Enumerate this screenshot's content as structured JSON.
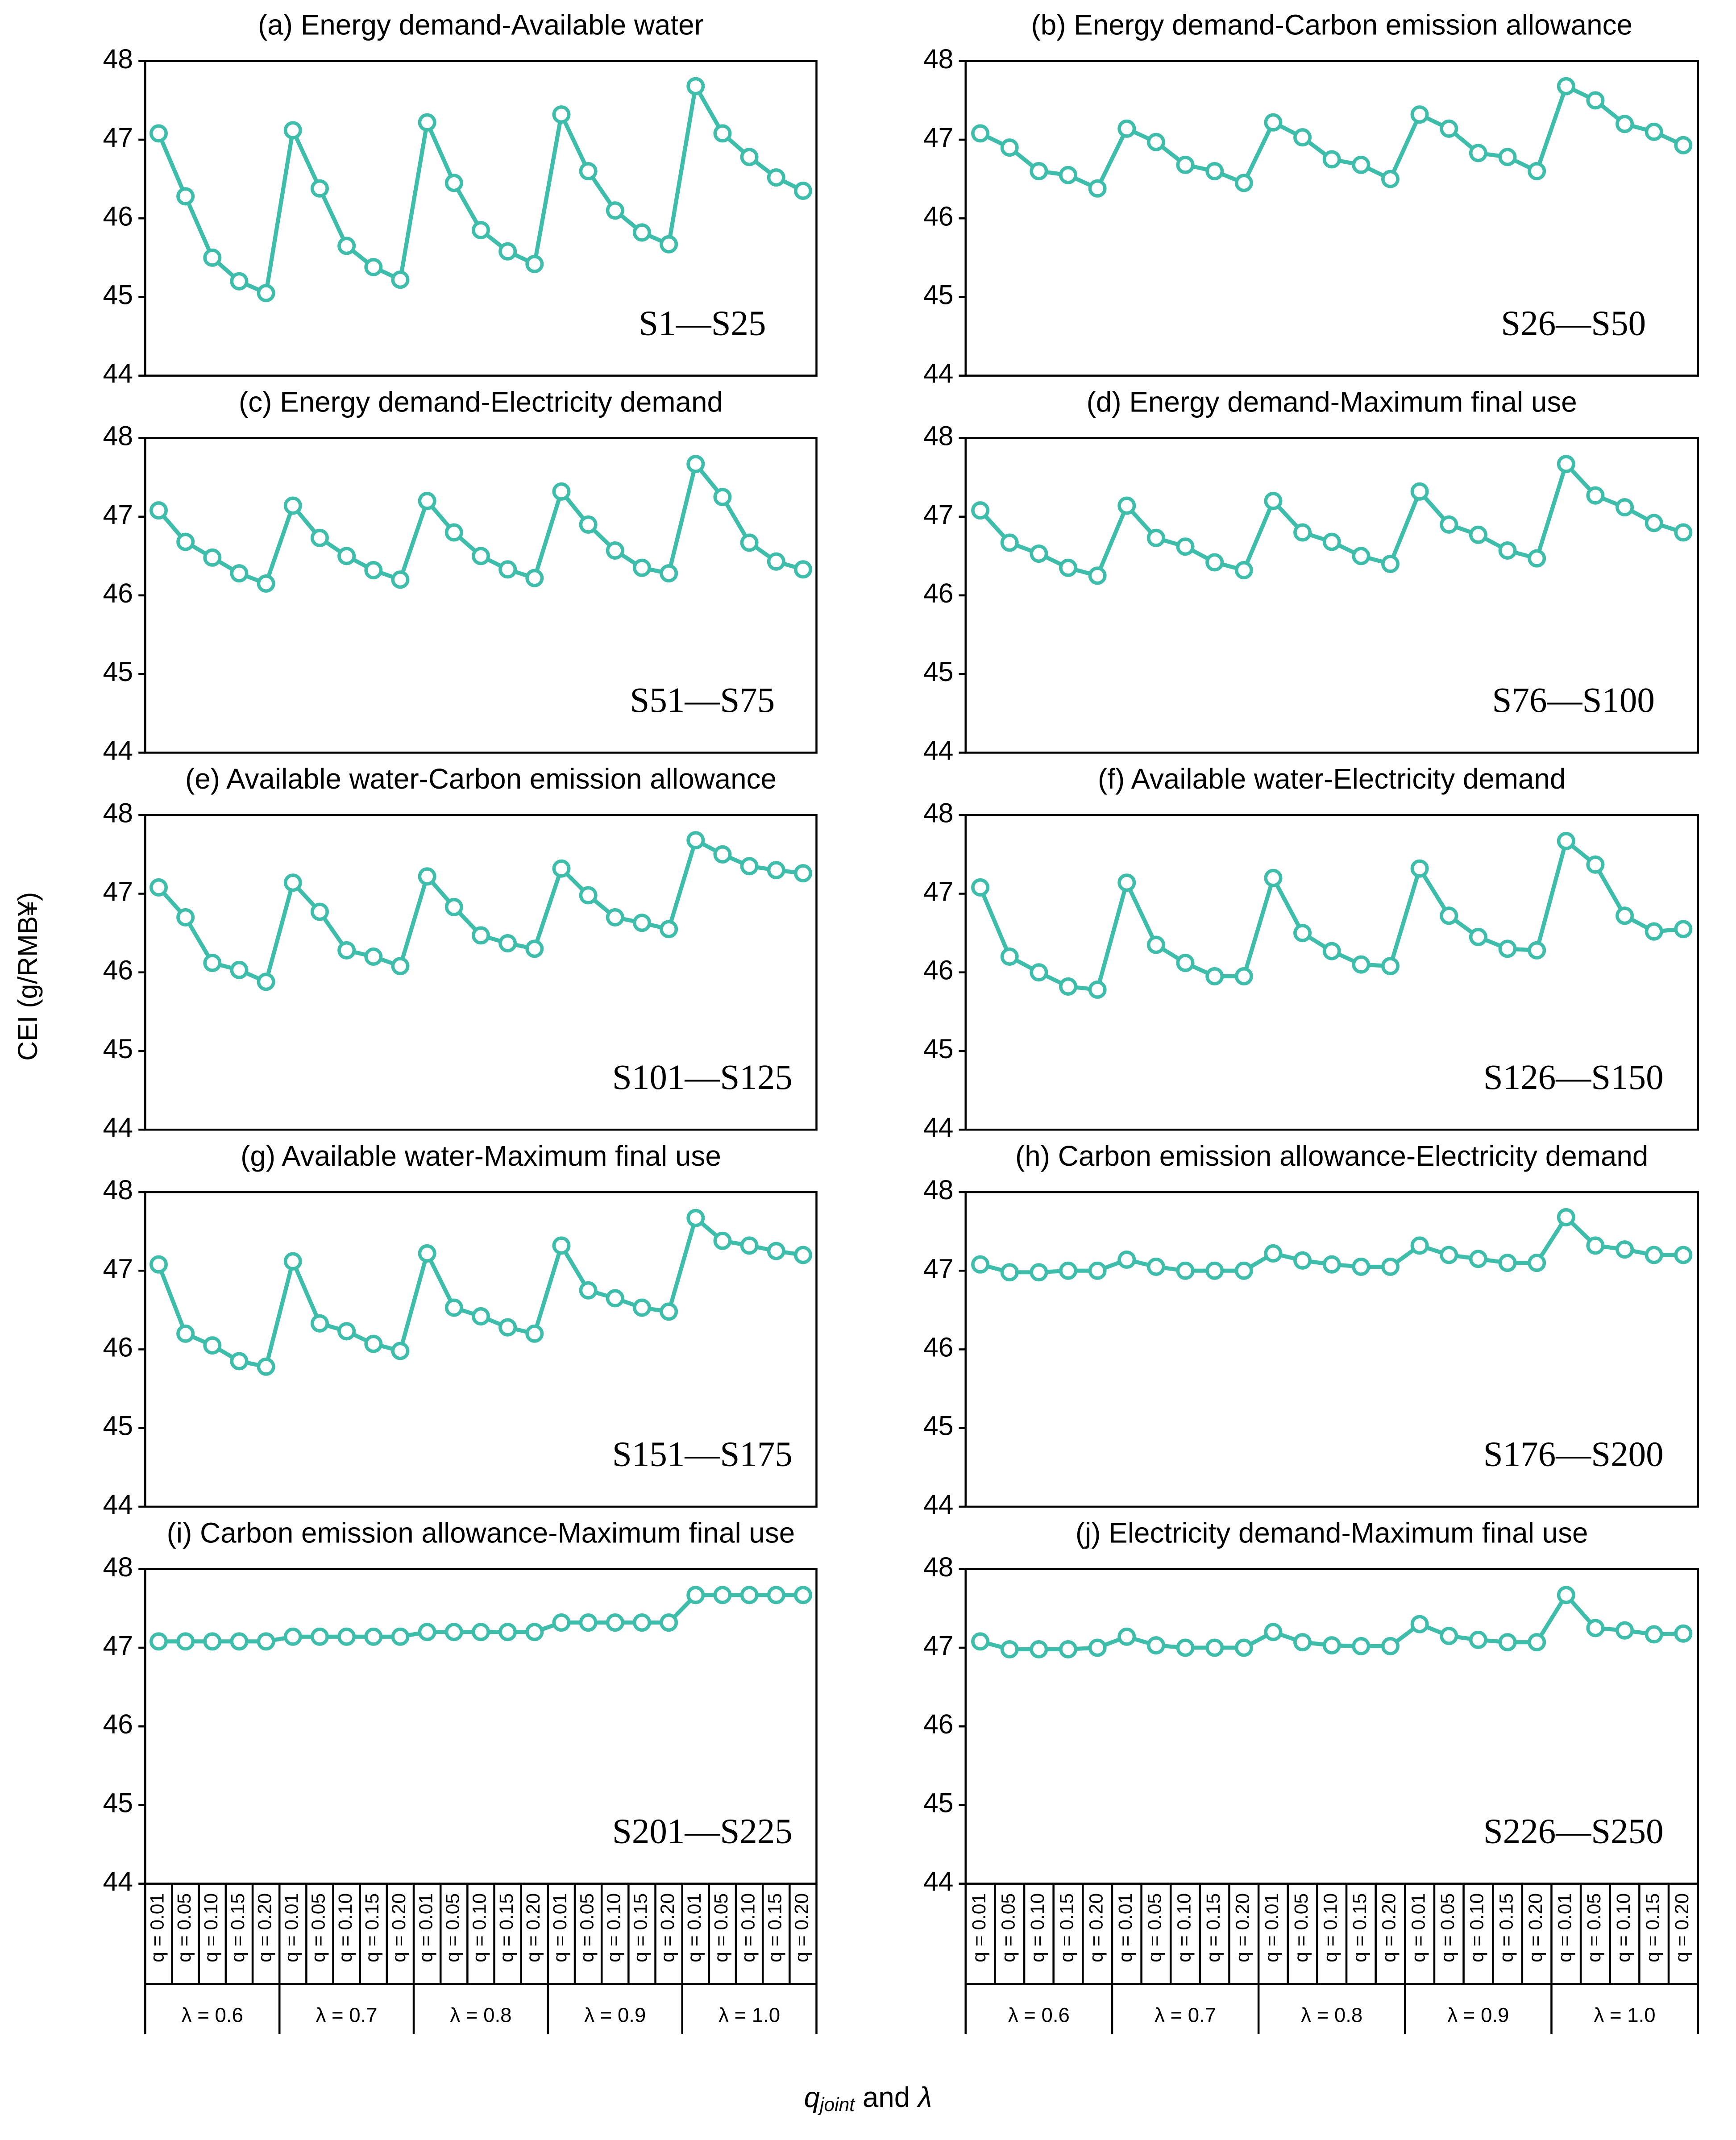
{
  "axis_labels": {
    "y": "CEI (g/RMB¥)",
    "x": [
      "q",
      "joint",
      " and ",
      "λ"
    ]
  },
  "chart_data": [
    {
      "type": "line",
      "title": "(a) Energy demand-Available water",
      "annotation": "S1—S25",
      "color": "#3dbdaa",
      "ylim": [
        44,
        48
      ],
      "yticks": [
        44,
        45,
        46,
        47,
        48
      ],
      "values": [
        47.08,
        46.28,
        45.5,
        45.2,
        45.05,
        47.12,
        46.38,
        45.65,
        45.38,
        45.22,
        47.22,
        46.45,
        45.85,
        45.58,
        45.42,
        47.32,
        46.6,
        46.1,
        45.82,
        45.67,
        47.68,
        47.08,
        46.78,
        46.52,
        46.35
      ]
    },
    {
      "type": "line",
      "title": "(b) Energy demand-Carbon emission allowance",
      "annotation": "S26—S50",
      "color": "#3dbdaa",
      "ylim": [
        44,
        48
      ],
      "yticks": [
        44,
        45,
        46,
        47,
        48
      ],
      "values": [
        47.08,
        46.9,
        46.6,
        46.55,
        46.38,
        47.14,
        46.97,
        46.68,
        46.6,
        46.45,
        47.22,
        47.03,
        46.75,
        46.68,
        46.5,
        47.32,
        47.14,
        46.83,
        46.78,
        46.6,
        47.68,
        47.5,
        47.2,
        47.1,
        46.93
      ]
    },
    {
      "type": "line",
      "title": "(c) Energy demand-Electricity demand",
      "annotation": "S51—S75",
      "color": "#3dbdaa",
      "ylim": [
        44,
        48
      ],
      "yticks": [
        44,
        45,
        46,
        47,
        48
      ],
      "values": [
        47.08,
        46.68,
        46.48,
        46.28,
        46.15,
        47.14,
        46.73,
        46.5,
        46.32,
        46.2,
        47.2,
        46.8,
        46.5,
        46.33,
        46.22,
        47.32,
        46.9,
        46.57,
        46.35,
        46.28,
        47.67,
        47.25,
        46.67,
        46.43,
        46.33
      ]
    },
    {
      "type": "line",
      "title": "(d) Energy demand-Maximum final use",
      "annotation": "S76—S100",
      "color": "#3dbdaa",
      "ylim": [
        44,
        48
      ],
      "yticks": [
        44,
        45,
        46,
        47,
        48
      ],
      "values": [
        47.08,
        46.67,
        46.53,
        46.35,
        46.25,
        47.14,
        46.73,
        46.62,
        46.42,
        46.32,
        47.2,
        46.8,
        46.68,
        46.5,
        46.4,
        47.32,
        46.9,
        46.77,
        46.57,
        46.47,
        47.67,
        47.27,
        47.12,
        46.92,
        46.8
      ]
    },
    {
      "type": "line",
      "title": "(e) Available water-Carbon emission allowance",
      "annotation": "S101—S125",
      "color": "#3dbdaa",
      "ylim": [
        44,
        48
      ],
      "yticks": [
        44,
        45,
        46,
        47,
        48
      ],
      "values": [
        47.08,
        46.7,
        46.12,
        46.03,
        45.88,
        47.14,
        46.77,
        46.28,
        46.2,
        46.08,
        47.22,
        46.83,
        46.47,
        46.37,
        46.3,
        47.32,
        46.98,
        46.7,
        46.63,
        46.55,
        47.68,
        47.5,
        47.35,
        47.3,
        47.26
      ]
    },
    {
      "type": "line",
      "title": "(f) Available water-Electricity demand",
      "annotation": "S126—S150",
      "color": "#3dbdaa",
      "ylim": [
        44,
        48
      ],
      "yticks": [
        44,
        45,
        46,
        47,
        48
      ],
      "values": [
        47.08,
        46.2,
        46.0,
        45.82,
        45.78,
        47.14,
        46.35,
        46.12,
        45.95,
        45.95,
        47.2,
        46.5,
        46.27,
        46.1,
        46.08,
        47.32,
        46.72,
        46.45,
        46.3,
        46.28,
        47.67,
        47.37,
        46.72,
        46.52,
        46.55
      ]
    },
    {
      "type": "line",
      "title": "(g) Available water-Maximum final use",
      "annotation": "S151—S175",
      "color": "#3dbdaa",
      "ylim": [
        44,
        48
      ],
      "yticks": [
        44,
        45,
        46,
        47,
        48
      ],
      "values": [
        47.08,
        46.2,
        46.05,
        45.85,
        45.78,
        47.12,
        46.33,
        46.23,
        46.07,
        45.98,
        47.22,
        46.53,
        46.42,
        46.28,
        46.2,
        47.32,
        46.75,
        46.65,
        46.53,
        46.48,
        47.67,
        47.38,
        47.32,
        47.25,
        47.2
      ]
    },
    {
      "type": "line",
      "title": "(h) Carbon emission allowance-Electricity demand",
      "annotation": "S176—S200",
      "color": "#3dbdaa",
      "ylim": [
        44,
        48
      ],
      "yticks": [
        44,
        45,
        46,
        47,
        48
      ],
      "values": [
        47.08,
        46.98,
        46.98,
        47.0,
        47.0,
        47.14,
        47.05,
        47.0,
        47.0,
        47.0,
        47.22,
        47.13,
        47.08,
        47.05,
        47.05,
        47.32,
        47.2,
        47.15,
        47.1,
        47.1,
        47.68,
        47.32,
        47.27,
        47.2,
        47.2
      ]
    },
    {
      "type": "line",
      "title": "(i) Carbon emission allowance-Maximum final use",
      "annotation": "S201—S225",
      "color": "#3dbdaa",
      "ylim": [
        44,
        48
      ],
      "yticks": [
        44,
        45,
        46,
        47,
        48
      ],
      "values": [
        47.08,
        47.08,
        47.08,
        47.08,
        47.08,
        47.14,
        47.14,
        47.14,
        47.14,
        47.14,
        47.2,
        47.2,
        47.2,
        47.2,
        47.2,
        47.32,
        47.32,
        47.32,
        47.32,
        47.32,
        47.67,
        47.67,
        47.67,
        47.67,
        47.67
      ],
      "categories": [
        "q = 0.01",
        "q = 0.05",
        "q = 0.10",
        "q = 0.15",
        "q = 0.20",
        "q = 0.01",
        "q = 0.05",
        "q = 0.10",
        "q = 0.15",
        "q = 0.20",
        "q = 0.01",
        "q = 0.05",
        "q = 0.10",
        "q = 0.15",
        "q = 0.20",
        "q = 0.01",
        "q = 0.05",
        "q = 0.10",
        "q = 0.15",
        "q = 0.20",
        "q = 0.01",
        "q = 0.05",
        "q = 0.10",
        "q = 0.15",
        "q = 0.20"
      ],
      "groups": [
        "λ = 0.6",
        "λ = 0.7",
        "λ = 0.8",
        "λ = 0.9",
        "λ = 1.0"
      ]
    },
    {
      "type": "line",
      "title": "(j) Electricity demand-Maximum final use",
      "annotation": "S226—S250",
      "color": "#3dbdaa",
      "ylim": [
        44,
        48
      ],
      "yticks": [
        44,
        45,
        46,
        47,
        48
      ],
      "values": [
        47.08,
        46.98,
        46.98,
        46.98,
        47.0,
        47.14,
        47.03,
        47.0,
        47.0,
        47.0,
        47.2,
        47.07,
        47.03,
        47.02,
        47.02,
        47.3,
        47.15,
        47.1,
        47.07,
        47.07,
        47.67,
        47.25,
        47.22,
        47.17,
        47.18
      ],
      "categories": [
        "q = 0.01",
        "q = 0.05",
        "q = 0.10",
        "q = 0.15",
        "q = 0.20",
        "q = 0.01",
        "q = 0.05",
        "q = 0.10",
        "q = 0.15",
        "q = 0.20",
        "q = 0.01",
        "q = 0.05",
        "q = 0.10",
        "q = 0.15",
        "q = 0.20",
        "q = 0.01",
        "q = 0.05",
        "q = 0.10",
        "q = 0.15",
        "q = 0.20",
        "q = 0.01",
        "q = 0.05",
        "q = 0.10",
        "q = 0.15",
        "q = 0.20"
      ],
      "groups": [
        "λ = 0.6",
        "λ = 0.7",
        "λ = 0.8",
        "λ = 0.9",
        "λ = 1.0"
      ]
    }
  ]
}
